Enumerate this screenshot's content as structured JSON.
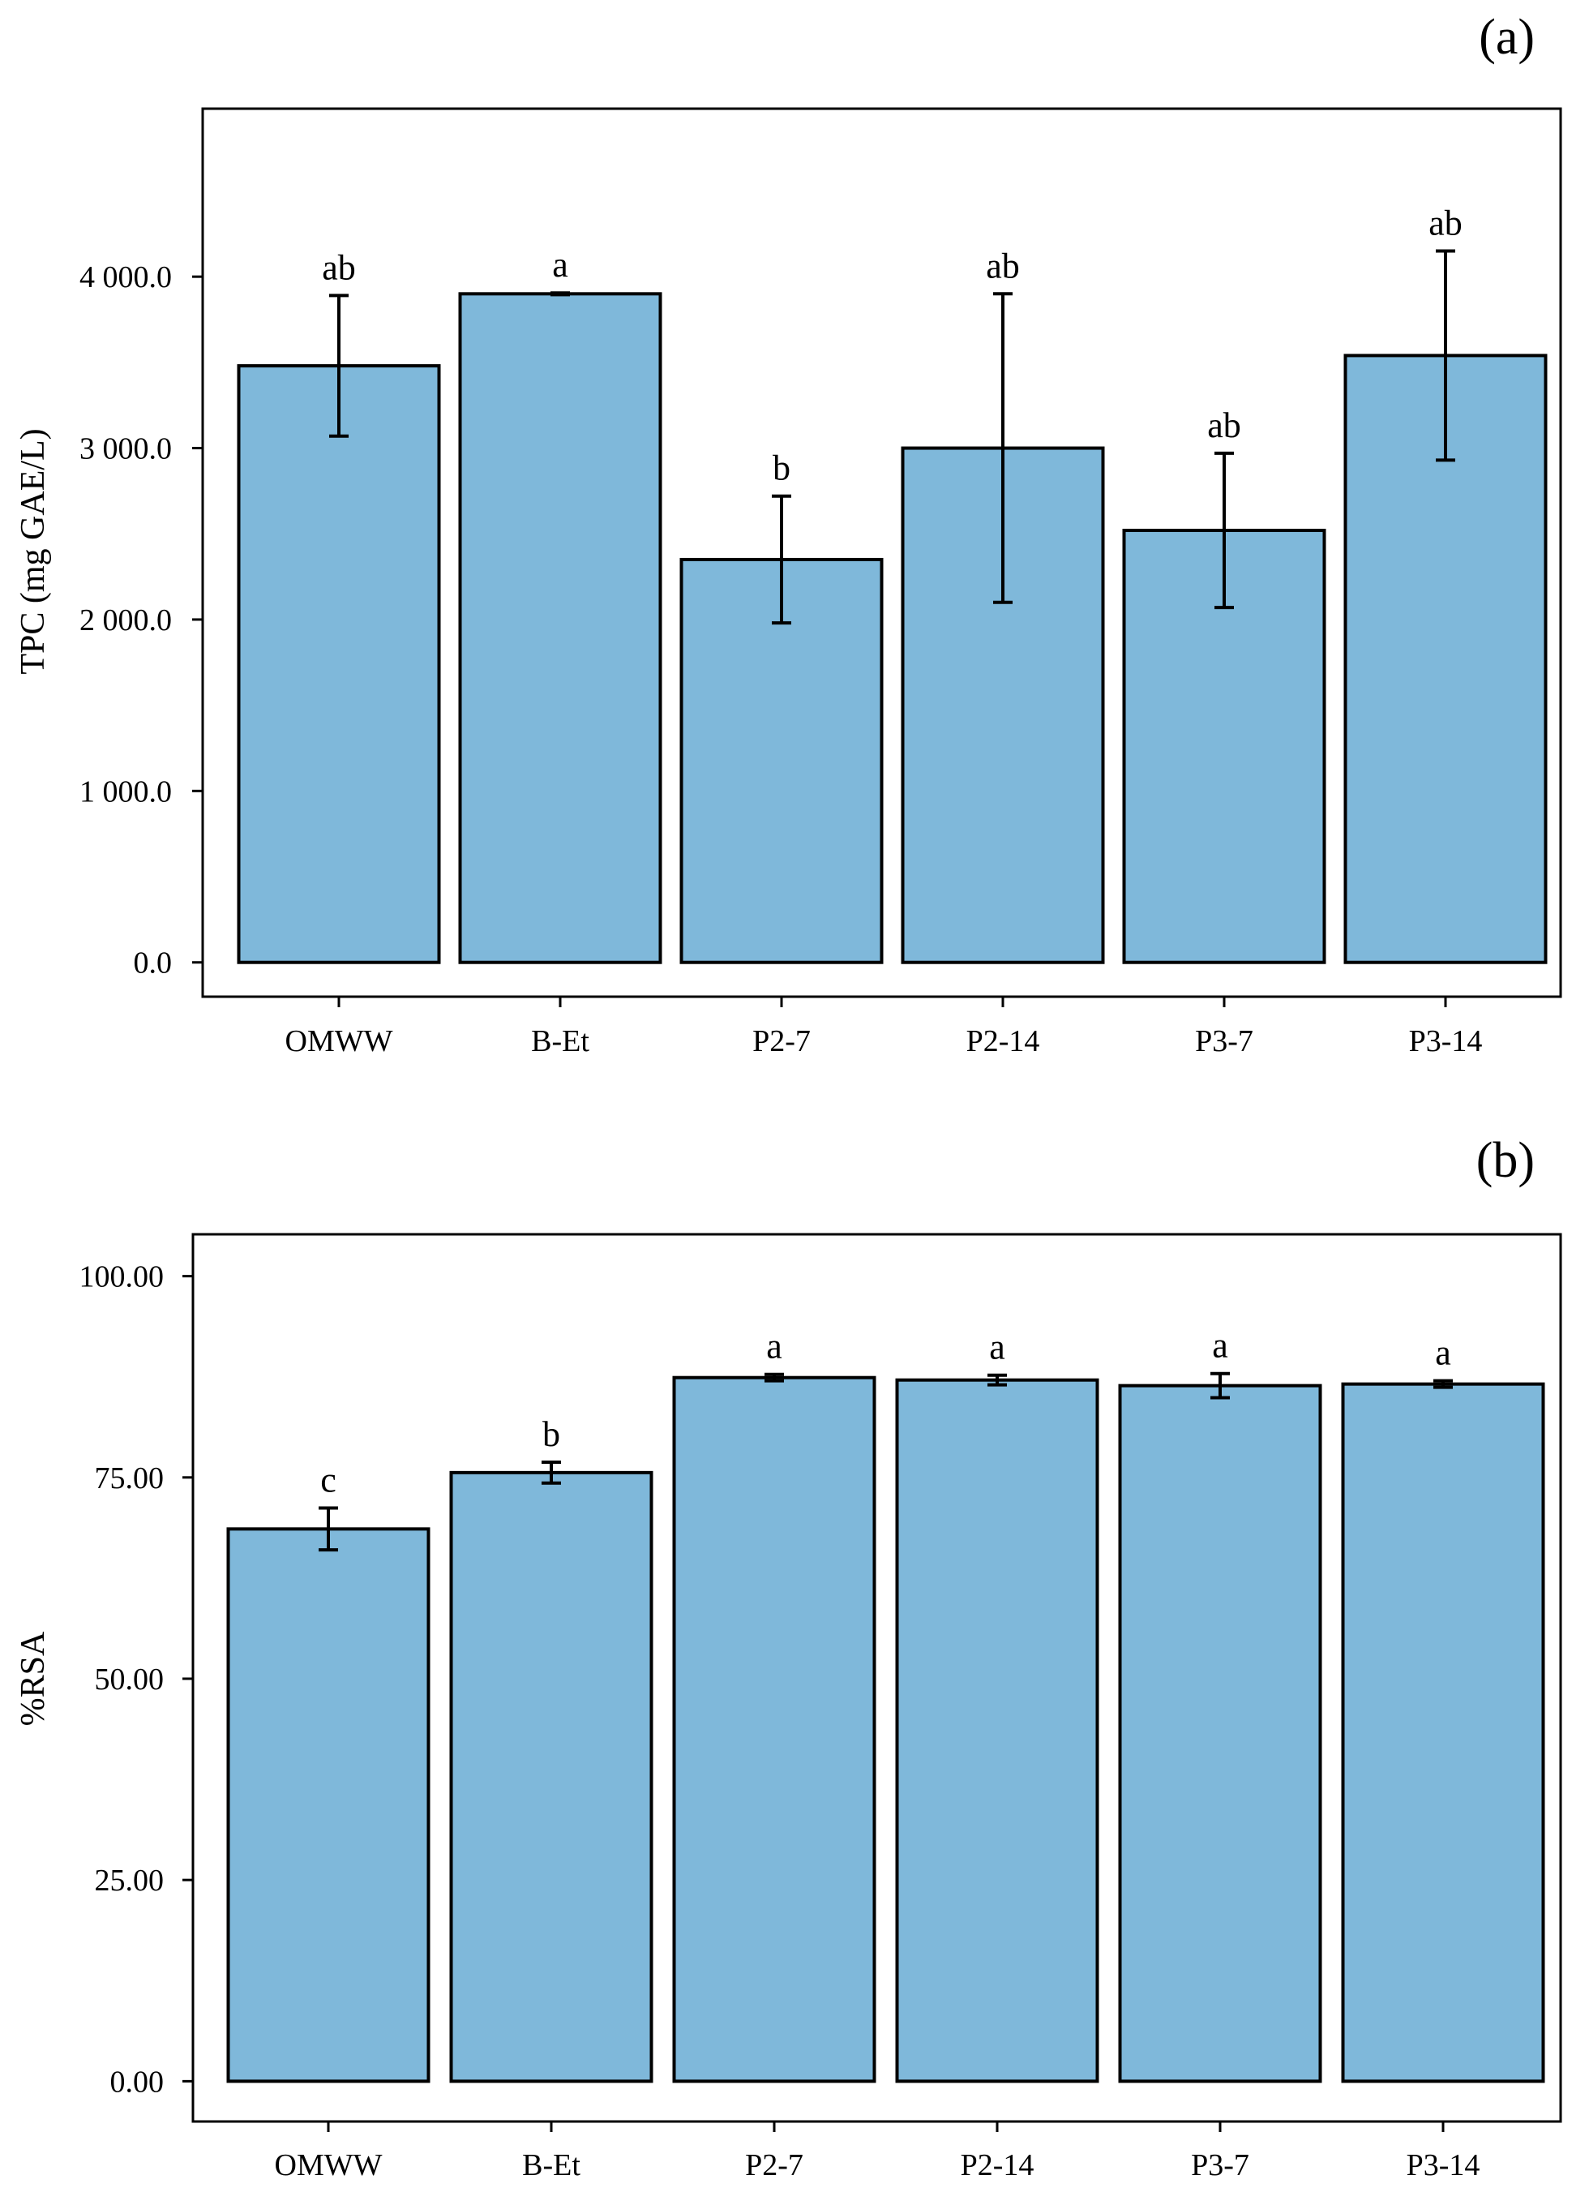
{
  "chart_data": [
    {
      "panel": "(a)",
      "type": "bar",
      "categories": [
        "OMWW",
        "B-Et",
        "P2-7",
        "P2-14",
        "P3-7",
        "P3-14"
      ],
      "values": [
        3480,
        3900,
        2350,
        3000,
        2520,
        3540
      ],
      "errors": [
        410,
        5,
        370,
        900,
        450,
        610
      ],
      "significance": [
        "ab",
        "a",
        "b",
        "ab",
        "ab",
        "ab"
      ],
      "title": "",
      "xlabel": "",
      "ylabel": "TPC (mg GAE/L)",
      "ylim": [
        -200,
        4980
      ],
      "yticks": [
        0,
        1000,
        2000,
        3000,
        4000
      ],
      "ytick_labels": [
        "0.0",
        "1 000.0",
        "2 000.0",
        "3 000.0",
        "4 000.0"
      ],
      "bar_color": "#7fb8da",
      "grid": false
    },
    {
      "panel": "(b)",
      "type": "bar",
      "categories": [
        "OMWW",
        "B-Et",
        "P2-7",
        "P2-14",
        "P3-7",
        "P3-14"
      ],
      "values": [
        68.6,
        75.6,
        87.4,
        87.1,
        86.4,
        86.6
      ],
      "errors": [
        2.6,
        1.3,
        0.4,
        0.6,
        1.5,
        0.4
      ],
      "significance": [
        "c",
        "b",
        "a",
        "a",
        "a",
        "a"
      ],
      "title": "",
      "xlabel": "",
      "ylabel": "%RSA",
      "ylim": [
        -5.0,
        105.2
      ],
      "yticks": [
        0,
        25,
        50,
        75,
        100
      ],
      "ytick_labels": [
        "0.00",
        "25.00",
        "50.00",
        "75.00",
        "100.00"
      ],
      "bar_color": "#7fb8da",
      "grid": false
    }
  ]
}
